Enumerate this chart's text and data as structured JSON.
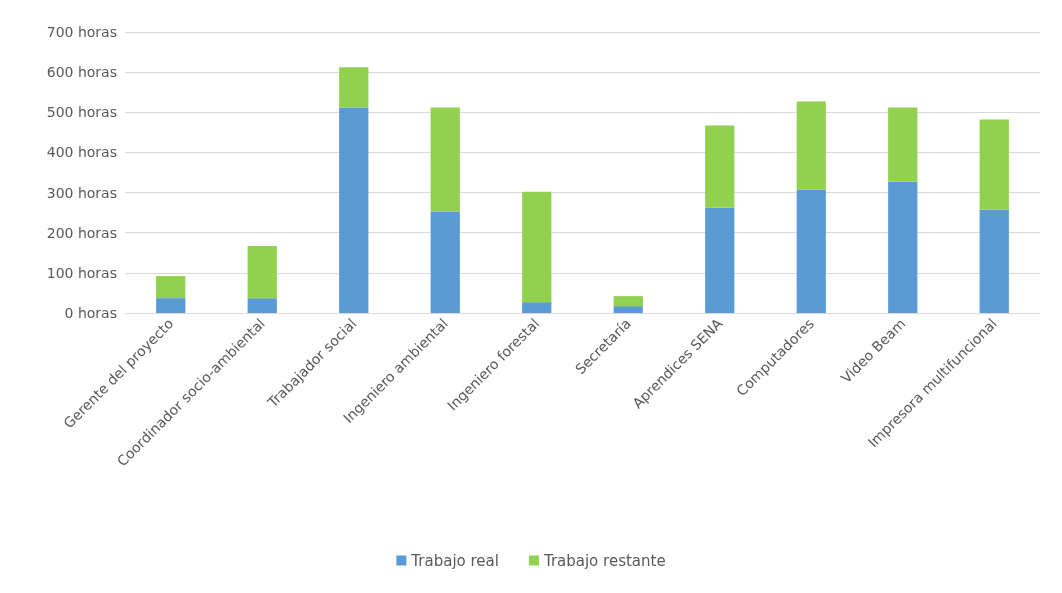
{
  "chart_data": {
    "type": "bar",
    "stacked": true,
    "categories": [
      "Gerente del proyecto",
      "Coordinador socio-ambiental",
      "Trabajador social",
      "Ingeniero ambiental",
      "Ingeniero forestal",
      "Secretaría",
      "Aprendices SENA",
      "Computadores",
      "Video Beam",
      "Impresora multifuncional"
    ],
    "series": [
      {
        "name": "Trabajo real",
        "color": "#5b9bd5",
        "values": [
          37,
          37,
          512,
          252,
          27,
          17,
          262,
          307,
          327,
          257
        ]
      },
      {
        "name": "Trabajo restante",
        "color": "#92d050",
        "values": [
          55,
          130,
          100,
          260,
          275,
          25,
          205,
          220,
          185,
          225
        ]
      }
    ],
    "ylim": [
      0,
      700
    ],
    "yticks": [
      {
        "value": 0,
        "label": "0 horas"
      },
      {
        "value": 100,
        "label": "100 horas"
      },
      {
        "value": 200,
        "label": "200 horas"
      },
      {
        "value": 300,
        "label": "300 horas"
      },
      {
        "value": 400,
        "label": "400 horas"
      },
      {
        "value": 500,
        "label": "500 horas"
      },
      {
        "value": 600,
        "label": "600 horas"
      },
      {
        "value": 700,
        "label": "700 horas"
      }
    ],
    "grid": "y",
    "legend": "bottom"
  }
}
